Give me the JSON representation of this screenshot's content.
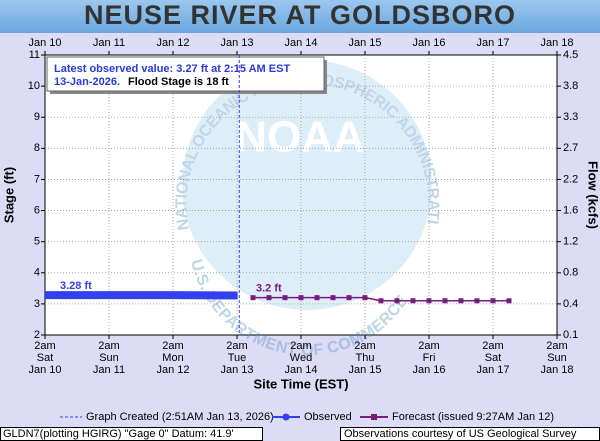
{
  "chart_data": {
    "type": "line",
    "title": "NEUSE RIVER AT GOLDSBORO",
    "ylabel": "Stage (ft)",
    "y2label": "Flow (kcfs)",
    "xlabel": "Site Time (EST)",
    "info_line1": "Latest observed value: 3.27 ft at 2:15 AM EST",
    "info_line2": "13-Jan-2026.",
    "info_flood": "Flood Stage is 18 ft",
    "watermark": {
      "center": "NOAA",
      "top_arc": "NATIONAL OCEANIC AND ATMOSPHERIC ADMINISTRATION",
      "bottom_arc": "U.S. DEPARTMENT OF COMMERCE"
    },
    "created": "2026-01-13T02:51",
    "legend": [
      "Graph Created (2:51AM Jan 13, 2026)",
      "Observed",
      "Forecast (issued 9:27AM Jan 12)"
    ],
    "footer_left": "GLDN7(plotting HGIRG) \"Gage 0\" Datum: 41.9'",
    "footer_right": "Observations courtesy of US Geological Survey",
    "xlim": [
      "2026-01-10T02:00",
      "2026-01-18T02:00"
    ],
    "xticks": [
      {
        "value": "2026-01-10T02:00",
        "label": "Jan 10"
      },
      {
        "value": "2026-01-11T02:00",
        "label": "Jan 11"
      },
      {
        "value": "2026-01-12T02:00",
        "label": "Jan 12"
      },
      {
        "value": "2026-01-13T02:00",
        "label": "Jan 13"
      },
      {
        "value": "2026-01-14T02:00",
        "label": "Jan 14"
      },
      {
        "value": "2026-01-15T02:00",
        "label": "Jan 15"
      },
      {
        "value": "2026-01-16T02:00",
        "label": "Jan 16"
      },
      {
        "value": "2026-01-17T02:00",
        "label": "Jan 17"
      },
      {
        "value": "2026-01-18T02:00",
        "label": "Jan 18"
      }
    ],
    "xtick_times": [
      "2am",
      "2am",
      "2am",
      "2am",
      "2am",
      "2am",
      "2am",
      "2am",
      "2am"
    ],
    "xtick_weekdays": [
      "Sat",
      "Sun",
      "Mon",
      "Tue",
      "Wed",
      "Thu",
      "Fri",
      "Sat",
      "Sun"
    ],
    "ylim": [
      2,
      11
    ],
    "yticks": [
      2,
      3,
      4,
      5,
      6,
      7,
      8,
      9,
      10,
      11
    ],
    "y2ticks": [
      0.1,
      0.4,
      0.8,
      1.2,
      1.6,
      2.2,
      2.7,
      3.3,
      3.8,
      4.5
    ],
    "grid": true,
    "series": [
      {
        "name": "Observed",
        "color": "#3340ee",
        "x": [
          "2026-01-10T02:00",
          "2026-01-11T02:00",
          "2026-01-12T02:00",
          "2026-01-13T02:15"
        ],
        "values": [
          3.28,
          3.28,
          3.28,
          3.27
        ],
        "value_labels": [
          "3.28 ft",
          null,
          null,
          null
        ]
      },
      {
        "name": "Forecast",
        "color": "#7a1a7a",
        "x": [
          "2026-01-13T08:00",
          "2026-01-13T14:00",
          "2026-01-13T20:00",
          "2026-01-14T02:00",
          "2026-01-14T08:00",
          "2026-01-14T14:00",
          "2026-01-14T20:00",
          "2026-01-15T02:00",
          "2026-01-15T08:00",
          "2026-01-15T14:00",
          "2026-01-15T20:00",
          "2026-01-16T02:00",
          "2026-01-16T08:00",
          "2026-01-16T14:00",
          "2026-01-16T20:00",
          "2026-01-17T02:00",
          "2026-01-17T08:00"
        ],
        "values": [
          3.2,
          3.2,
          3.2,
          3.2,
          3.2,
          3.2,
          3.2,
          3.2,
          3.1,
          3.1,
          3.1,
          3.1,
          3.1,
          3.1,
          3.1,
          3.1,
          3.1
        ],
        "value_labels": [
          "3.2 ft",
          null,
          null,
          null,
          null,
          null,
          null,
          null,
          null,
          null,
          null,
          null,
          null,
          null,
          null,
          null,
          null
        ]
      }
    ]
  }
}
